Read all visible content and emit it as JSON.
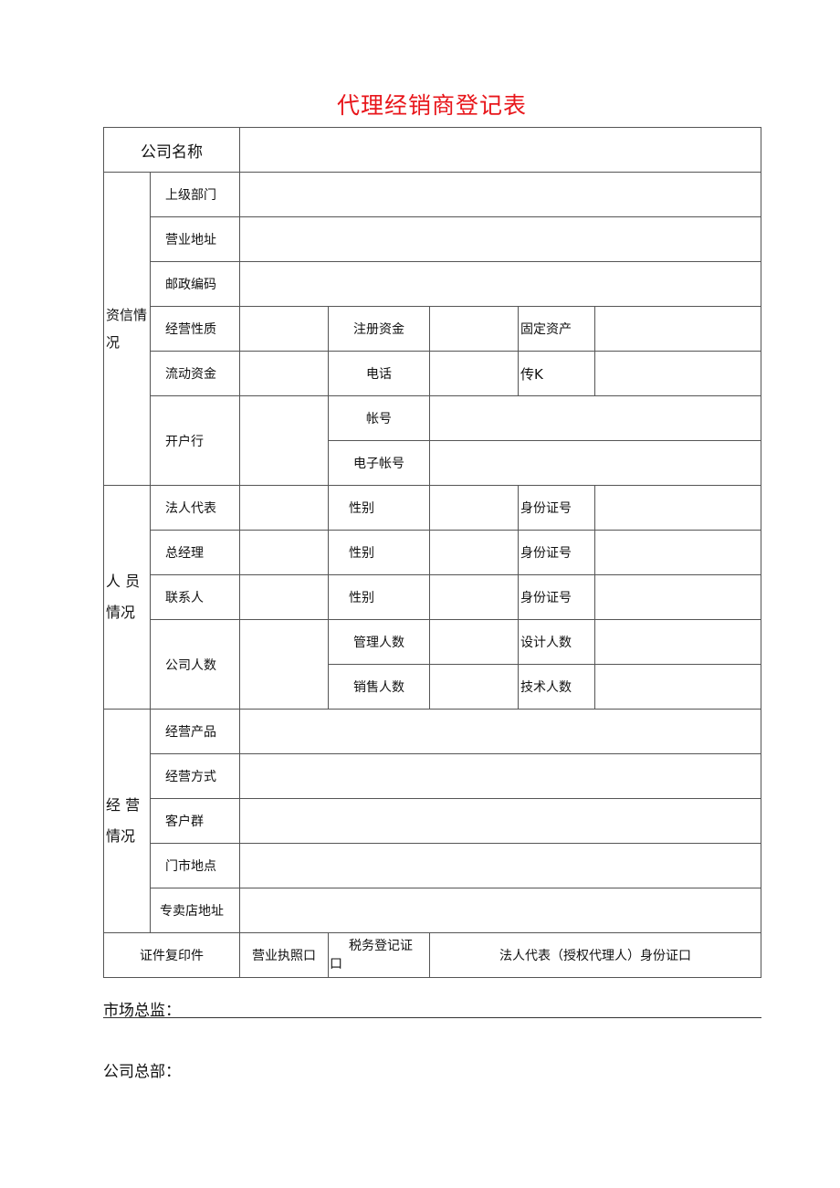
{
  "title": "代理经销商登记表",
  "company_name_label": "公司名称",
  "sections": {
    "credit": "资信情况",
    "staff": "人 员 情况",
    "business": "经 营 情况"
  },
  "credit": {
    "superior_dept": "上级部门",
    "business_address": "营业地址",
    "postal_code": "邮政编码",
    "business_nature": "经营性质",
    "registered_capital": "注册资金",
    "fixed_assets": "固定资产",
    "working_capital": "流动资金",
    "phone": "电话",
    "fax": "传K",
    "bank": "开户行",
    "account": "帐号",
    "e_account": "电子帐号"
  },
  "staff": {
    "legal_rep": "法人代表",
    "gm": "总经理",
    "contact": "联系人",
    "gender": "性别",
    "id_no": "身份证号",
    "headcount": "公司人数",
    "mgmt_count": "管理人数",
    "design_count": "设计人数",
    "sales_count": "销售人数",
    "tech_count": "技术人数"
  },
  "business": {
    "products": "经营产品",
    "mode": "经营方式",
    "customers": "客户群",
    "store_location": "门市地点",
    "shop_address": "专卖店地址"
  },
  "copies": {
    "label": "证件复印件",
    "license": "营业执照口",
    "tax_1": "税务登记证",
    "tax_2": "口",
    "legal_id": "法人代表（授权代理人）身份证口"
  },
  "footer": {
    "market_director": "市场总监：",
    "headquarters": "公司总部："
  }
}
